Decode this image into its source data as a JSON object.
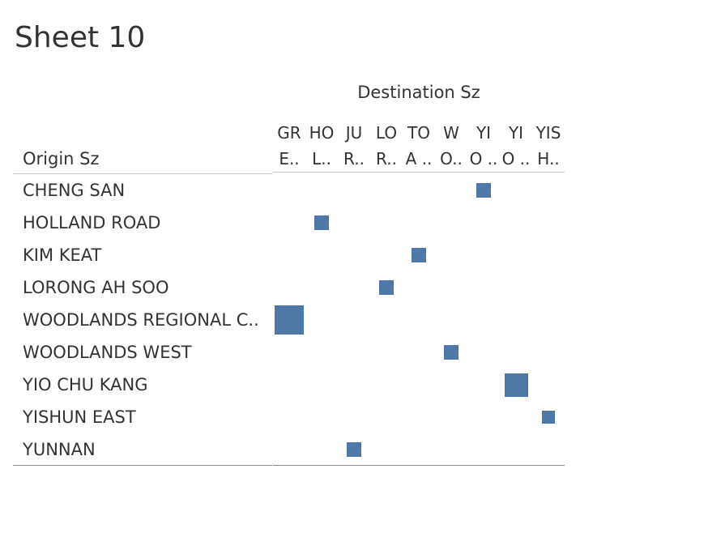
{
  "title": "Sheet 10",
  "row_header": "Origin Sz",
  "column_header": "Destination Sz",
  "chart_data": {
    "type": "heatmap",
    "title": "Sheet 10",
    "xlabel": "Destination Sz",
    "ylabel": "Origin Sz",
    "columns": [
      {
        "line1": "GR",
        "line2": "E.."
      },
      {
        "line1": "HO",
        "line2": "L.."
      },
      {
        "line1": "JU",
        "line2": "R.."
      },
      {
        "line1": "LO",
        "line2": "R.."
      },
      {
        "line1": "TO",
        "line2": "A .."
      },
      {
        "line1": "W",
        "line2": "O.."
      },
      {
        "line1": "YI",
        "line2": "O .."
      },
      {
        "line1": "YI",
        "line2": "O .."
      },
      {
        "line1": "YIS",
        "line2": "H.."
      }
    ],
    "rows": [
      "CHENG SAN",
      "HOLLAND ROAD",
      "KIM KEAT",
      "LORONG AH SOO",
      "WOODLANDS REGIONAL C..",
      "WOODLANDS WEST",
      "YIO CHU KANG",
      "YISHUN EAST",
      "YUNNAN"
    ],
    "cells": [
      {
        "row": 0,
        "col": 6,
        "relative_size": 0.5
      },
      {
        "row": 1,
        "col": 1,
        "relative_size": 0.5
      },
      {
        "row": 2,
        "col": 4,
        "relative_size": 0.5
      },
      {
        "row": 3,
        "col": 3,
        "relative_size": 0.5
      },
      {
        "row": 4,
        "col": 0,
        "relative_size": 1.0
      },
      {
        "row": 5,
        "col": 5,
        "relative_size": 0.5
      },
      {
        "row": 6,
        "col": 7,
        "relative_size": 0.8
      },
      {
        "row": 7,
        "col": 8,
        "relative_size": 0.45
      },
      {
        "row": 8,
        "col": 2,
        "relative_size": 0.5
      }
    ],
    "mark_color": "#4e79a7",
    "legend": "none",
    "grid": false
  }
}
